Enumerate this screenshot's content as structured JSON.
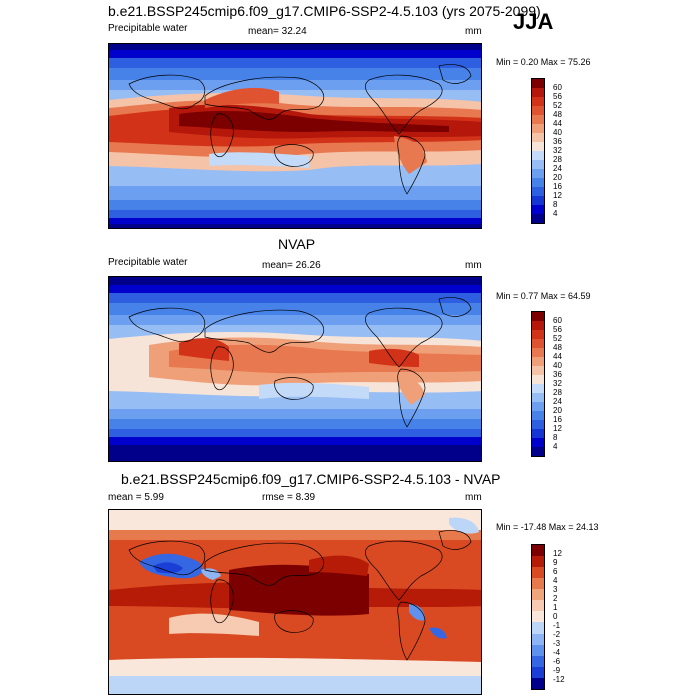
{
  "season": "JJA",
  "colors": {
    "abs": [
      "#00008b",
      "#0000cd",
      "#1636d4",
      "#2d5fe0",
      "#4682e8",
      "#6d9ff0",
      "#97bdf5",
      "#c3daf8",
      "#f7e4d8",
      "#f5c3a8",
      "#f0a078",
      "#e8784f",
      "#e05331",
      "#d23318",
      "#b5170b",
      "#7d0000"
    ],
    "diff": [
      "#00008b",
      "#1a3fd6",
      "#3567e3",
      "#5e92ed",
      "#8db5f4",
      "#bcd6f8",
      "#f9e7dc",
      "#f6cbb1",
      "#f0a47b",
      "#e77a4c",
      "#d94a22",
      "#b51b07",
      "#7d0000"
    ]
  },
  "chart_data": [
    {
      "type": "heatmap",
      "title": "b.e21.BSSP245cmip6.f09_g17.CMIP6-SSP2-4.5.103 (yrs 2075-2099)",
      "left_label": "Precipitable water",
      "center_label": "mean=  32.24",
      "units": "mm",
      "minmax": "Min =   0.20 Max =  75.26",
      "colorbar_levels": [
        "60",
        "56",
        "52",
        "48",
        "44",
        "40",
        "36",
        "32",
        "28",
        "24",
        "20",
        "16",
        "12",
        "8",
        "4"
      ]
    },
    {
      "type": "heatmap",
      "title": "NVAP",
      "left_label": "Precipitable water",
      "center_label": "mean=  26.26",
      "units": "mm",
      "minmax": "Min =   0.77 Max =  64.59",
      "colorbar_levels": [
        "60",
        "56",
        "52",
        "48",
        "44",
        "40",
        "36",
        "32",
        "28",
        "24",
        "20",
        "16",
        "12",
        "8",
        "4"
      ]
    },
    {
      "type": "heatmap",
      "title": "b.e21.BSSP245cmip6.f09_g17.CMIP6-SSP2-4.5.103 - NVAP",
      "left_label": "mean =   5.99",
      "center_label": "rmse =   8.39",
      "units": "mm",
      "minmax": "Min = -17.48 Max =  24.13",
      "colorbar_levels": [
        "12",
        "9",
        "6",
        "4",
        "3",
        "2",
        "1",
        "0",
        "-1",
        "-2",
        "-3",
        "-4",
        "-6",
        "-9",
        "-12"
      ]
    }
  ]
}
